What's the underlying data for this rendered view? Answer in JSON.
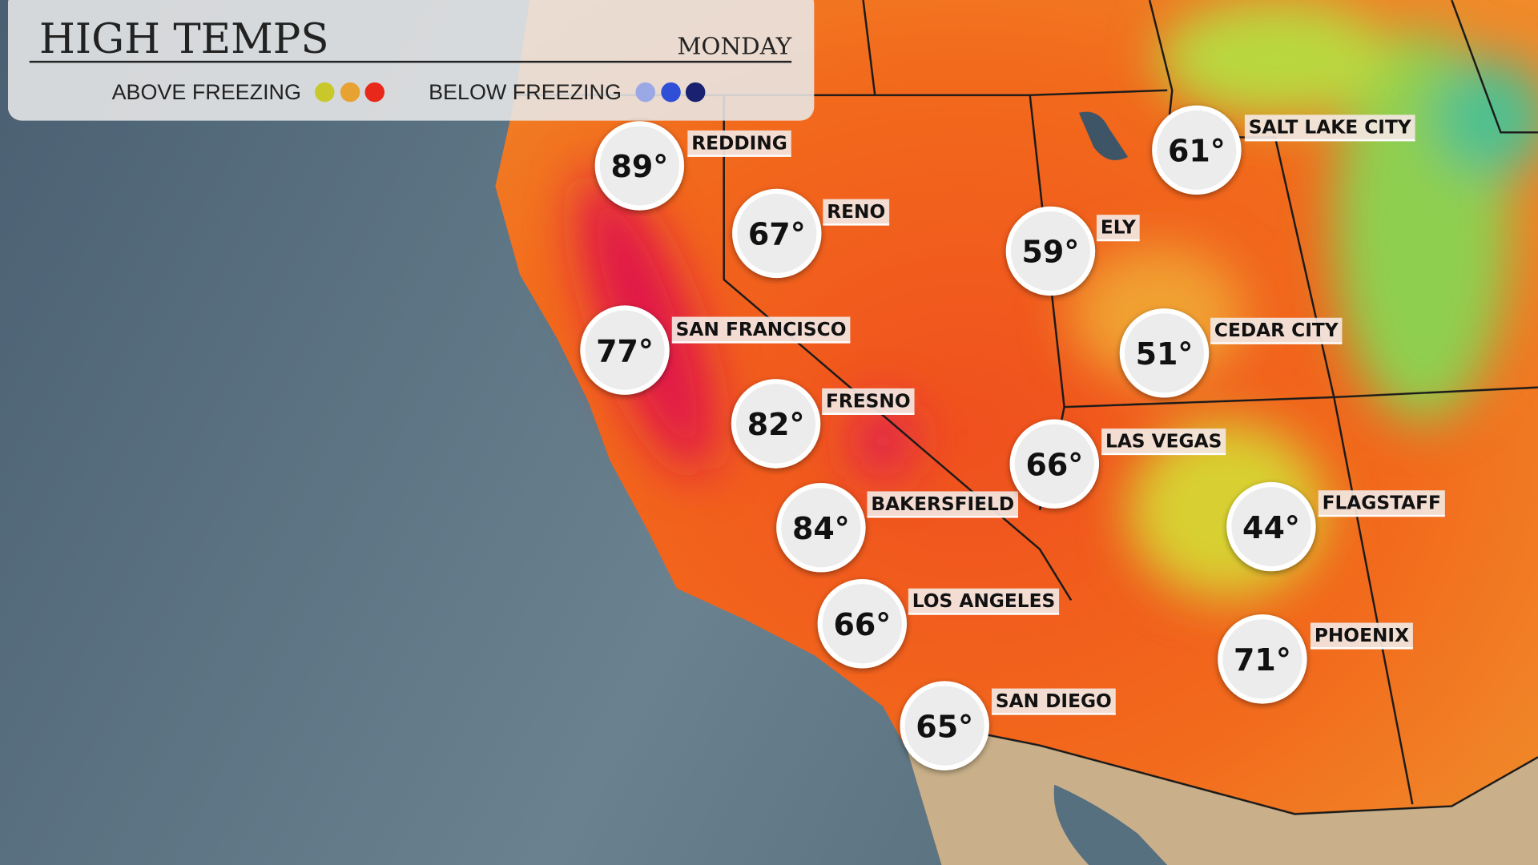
{
  "header": {
    "title": "HIGH TEMPS",
    "day": "MONDAY"
  },
  "legend": {
    "above": "ABOVE FREEZING",
    "below": "BELOW FREEZING"
  },
  "cities": [
    {
      "name": "REDDING",
      "temp": "89°"
    },
    {
      "name": "RENO",
      "temp": "67°"
    },
    {
      "name": "SAN FRANCISCO",
      "temp": "77°"
    },
    {
      "name": "FRESNO",
      "temp": "82°"
    },
    {
      "name": "BAKERSFIELD",
      "temp": "84°"
    },
    {
      "name": "LOS ANGELES",
      "temp": "66°"
    },
    {
      "name": "SAN DIEGO",
      "temp": "65°"
    },
    {
      "name": "SALT LAKE CITY",
      "temp": "61°"
    },
    {
      "name": "ELY",
      "temp": "59°"
    },
    {
      "name": "CEDAR CITY",
      "temp": "51°"
    },
    {
      "name": "LAS VEGAS",
      "temp": "66°"
    },
    {
      "name": "FLAGSTAFF",
      "temp": "44°"
    },
    {
      "name": "PHOENIX",
      "temp": "71°"
    }
  ]
}
